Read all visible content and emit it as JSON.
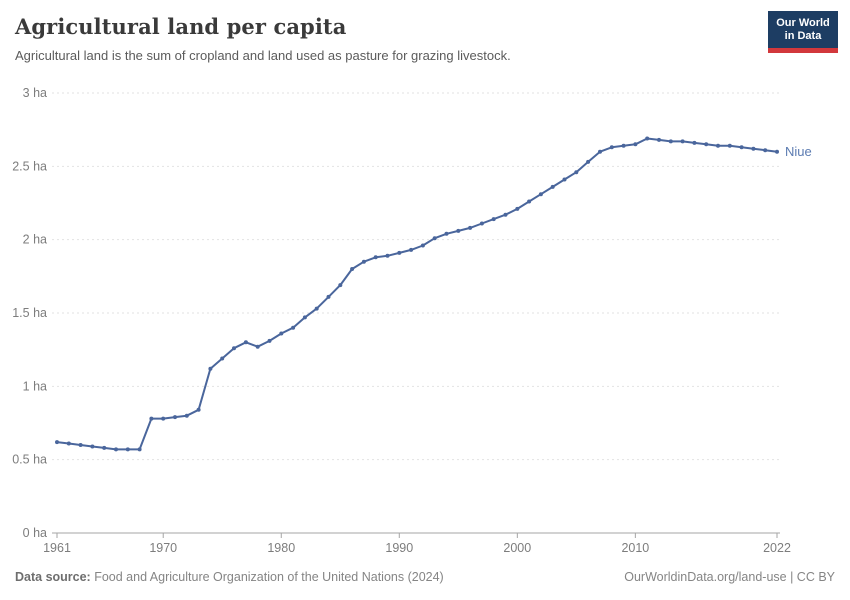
{
  "header": {
    "title": "Agricultural land per capita",
    "subtitle": "Agricultural land is the sum of cropland and land used as pasture for grazing livestock."
  },
  "logo": {
    "line1": "Our World",
    "line2": "in Data",
    "bg_color": "#1d3d63",
    "accent_color": "#d2383c"
  },
  "footer": {
    "data_source_label": "Data source:",
    "data_source_text": " Food and Agriculture Organization of the United Nations (2024)",
    "right_text": "OurWorldinData.org/land-use | CC BY"
  },
  "chart_data": {
    "type": "line",
    "title": "Agricultural land per capita",
    "xlabel": "",
    "ylabel": "",
    "unit": "ha",
    "xlim": [
      1961,
      2022
    ],
    "ylim": [
      0,
      3
    ],
    "grid": "horizontal-dashed",
    "legend_position": "right-of-line-end",
    "line_color": "#4a669c",
    "label_color": "#5b7bb1",
    "x_ticks": [
      {
        "v": 1961,
        "label": "1961"
      },
      {
        "v": 1970,
        "label": "1970"
      },
      {
        "v": 1980,
        "label": "1980"
      },
      {
        "v": 1990,
        "label": "1990"
      },
      {
        "v": 2000,
        "label": "2000"
      },
      {
        "v": 2010,
        "label": "2010"
      },
      {
        "v": 2022,
        "label": "2022"
      }
    ],
    "y_ticks": [
      {
        "v": 0,
        "label": "0 ha"
      },
      {
        "v": 0.5,
        "label": "0.5 ha"
      },
      {
        "v": 1,
        "label": "1 ha"
      },
      {
        "v": 1.5,
        "label": "1.5 ha"
      },
      {
        "v": 2,
        "label": "2 ha"
      },
      {
        "v": 2.5,
        "label": "2.5 ha"
      },
      {
        "v": 3,
        "label": "3 ha"
      }
    ],
    "series": [
      {
        "name": "Niue",
        "x": [
          1961,
          1962,
          1963,
          1964,
          1965,
          1966,
          1967,
          1968,
          1969,
          1970,
          1971,
          1972,
          1973,
          1974,
          1975,
          1976,
          1977,
          1978,
          1979,
          1980,
          1981,
          1982,
          1983,
          1984,
          1985,
          1986,
          1987,
          1988,
          1989,
          1990,
          1991,
          1992,
          1993,
          1994,
          1995,
          1996,
          1997,
          1998,
          1999,
          2000,
          2001,
          2002,
          2003,
          2004,
          2005,
          2006,
          2007,
          2008,
          2009,
          2010,
          2011,
          2012,
          2013,
          2014,
          2015,
          2016,
          2017,
          2018,
          2019,
          2020,
          2021,
          2022
        ],
        "values": [
          0.62,
          0.61,
          0.6,
          0.59,
          0.58,
          0.57,
          0.57,
          0.57,
          0.78,
          0.78,
          0.79,
          0.8,
          0.84,
          1.12,
          1.19,
          1.26,
          1.3,
          1.27,
          1.31,
          1.36,
          1.4,
          1.47,
          1.53,
          1.61,
          1.69,
          1.8,
          1.85,
          1.88,
          1.89,
          1.91,
          1.93,
          1.96,
          2.01,
          2.04,
          2.06,
          2.08,
          2.11,
          2.14,
          2.17,
          2.21,
          2.26,
          2.31,
          2.36,
          2.41,
          2.46,
          2.53,
          2.6,
          2.63,
          2.64,
          2.65,
          2.69,
          2.68,
          2.67,
          2.67,
          2.66,
          2.65,
          2.64,
          2.64,
          2.63,
          2.62,
          2.61,
          2.6
        ]
      }
    ]
  }
}
